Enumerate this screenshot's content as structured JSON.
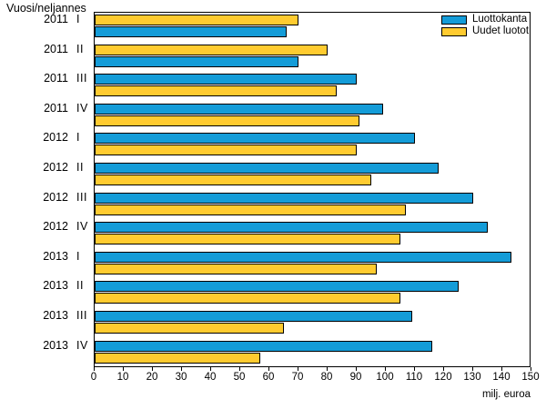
{
  "y_axis_title": "Vuosi/neljannes",
  "chart_data": {
    "type": "bar",
    "orientation": "horizontal",
    "title": "",
    "xlabel": "milj. euroa",
    "xlim": [
      0,
      150
    ],
    "xticks": [
      0,
      10,
      20,
      30,
      40,
      50,
      60,
      70,
      80,
      90,
      100,
      110,
      120,
      130,
      140,
      150
    ],
    "grid": false,
    "legend_position": "top-right-inside",
    "bar_border_color": "#000000",
    "categories": [
      {
        "year": "2011",
        "quarter": "I"
      },
      {
        "year": "2011",
        "quarter": "II"
      },
      {
        "year": "2011",
        "quarter": "III"
      },
      {
        "year": "2011",
        "quarter": "IV"
      },
      {
        "year": "2012",
        "quarter": "I"
      },
      {
        "year": "2012",
        "quarter": "II"
      },
      {
        "year": "2012",
        "quarter": "III"
      },
      {
        "year": "2012",
        "quarter": "IV"
      },
      {
        "year": "2013",
        "quarter": "I"
      },
      {
        "year": "2013",
        "quarter": "II"
      },
      {
        "year": "2013",
        "quarter": "III"
      },
      {
        "year": "2013",
        "quarter": "IV"
      }
    ],
    "series": [
      {
        "name": "Luottokanta",
        "color": "#149CD8",
        "values": [
          66,
          70,
          90,
          99,
          110,
          118,
          130,
          135,
          143,
          125,
          109,
          116
        ]
      },
      {
        "name": "Uudet luotot",
        "color": "#FFCB30",
        "values": [
          70,
          80,
          83,
          91,
          90,
          95,
          107,
          105,
          97,
          105,
          65,
          57
        ]
      }
    ],
    "bar_order_per_category": [
      [
        1,
        0
      ],
      [
        1,
        0
      ],
      [
        0,
        1
      ],
      [
        0,
        1
      ],
      [
        0,
        1
      ],
      [
        0,
        1
      ],
      [
        0,
        1
      ],
      [
        0,
        1
      ],
      [
        0,
        1
      ],
      [
        0,
        1
      ],
      [
        0,
        1
      ],
      [
        0,
        1
      ]
    ]
  }
}
